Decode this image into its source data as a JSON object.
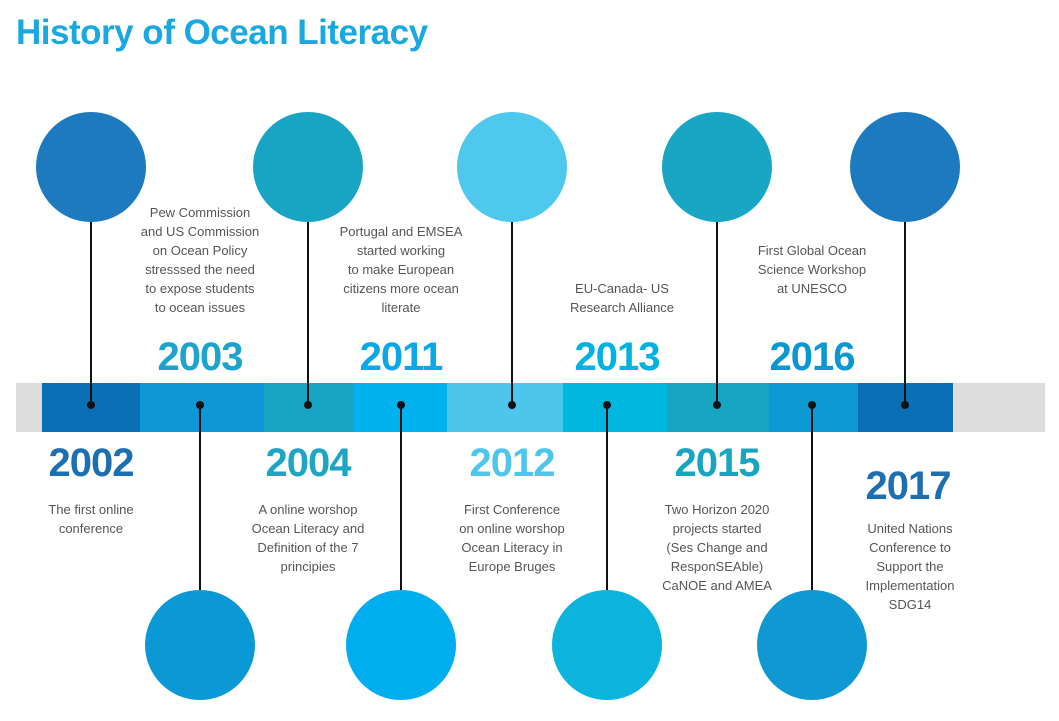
{
  "title": "History of Ocean Literacy",
  "events": [
    {
      "year": "2002",
      "lines": [
        "The first online",
        "conference"
      ]
    },
    {
      "year": "2003",
      "lines": [
        "Pew Commission",
        "and US Commission",
        "on Ocean Policy",
        "stresssed the need",
        "to expose students",
        "to ocean issues"
      ]
    },
    {
      "year": "2004",
      "lines": [
        "A online worshop",
        "Ocean Literacy  and",
        "Definition of the 7",
        "principies"
      ]
    },
    {
      "year": "2011",
      "lines": [
        "Portugal and EMSEA",
        "started working",
        "to make European",
        "citizens more ocean",
        "literate"
      ]
    },
    {
      "year": "2012",
      "lines": [
        "First Conference",
        "on online worshop",
        "Ocean Literacy in",
        "Europe Bruges"
      ]
    },
    {
      "year": "2013",
      "lines": [
        "EU-Canada- US",
        "Research Alliance"
      ]
    },
    {
      "year": "2015",
      "lines": [
        "Two Horizon 2020",
        "projects started",
        "(Ses Change and",
        "ResponSEAble)",
        "CaNOE and AMEA"
      ]
    },
    {
      "year": "2016",
      "lines": [
        "First Global Ocean",
        "Science Workshop",
        "at UNESCO"
      ]
    },
    {
      "year": "2017",
      "lines": [
        "United Nations",
        "Conference to",
        "Support the",
        "Implementation",
        "SDG14"
      ]
    }
  ]
}
